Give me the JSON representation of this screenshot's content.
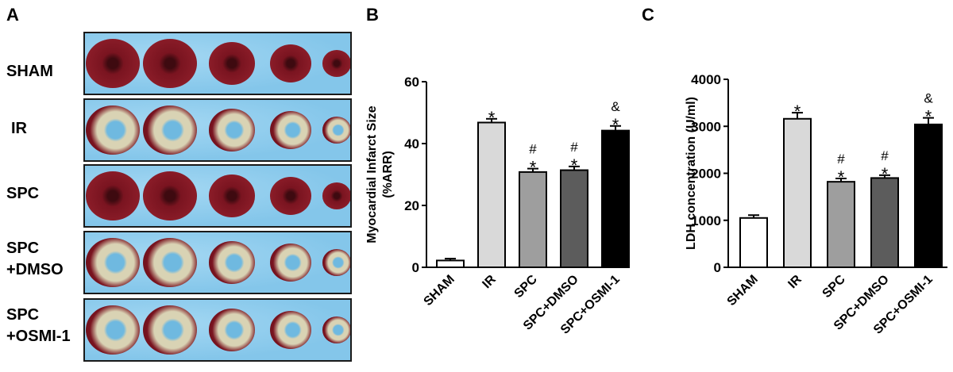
{
  "panel_letters": {
    "a": "A",
    "b": "B",
    "c": "C"
  },
  "panel_a": {
    "rows": [
      {
        "label": "SHAM",
        "infarct": false
      },
      {
        "label": "IR",
        "infarct": true
      },
      {
        "label": "SPC",
        "infarct": false
      },
      {
        "label": "SPC\n+DMSO",
        "infarct": true
      },
      {
        "label": "SPC\n+OSMI-1",
        "infarct": true
      }
    ],
    "colors": {
      "background": "#84c6ea",
      "viable_tissue": "#7a1420",
      "infarct_tissue": "#d9d3b4"
    }
  },
  "chart_data": [
    {
      "type": "bar",
      "panel": "B",
      "ylabel": "Myocardial Infarct Size\n(%ARR)",
      "xlabel": "",
      "ylim": [
        0,
        60
      ],
      "yticks": [
        0,
        20,
        40,
        60
      ],
      "categories": [
        "SHAM",
        "IR",
        "SPC",
        "SPC+DMSO",
        "SPC+OSMI-1"
      ],
      "values": [
        2.2,
        46.8,
        30.8,
        31.4,
        44.2
      ],
      "errors": [
        0.6,
        1.2,
        1.1,
        1.2,
        1.5
      ],
      "annotations": [
        "",
        "*",
        "#\n*",
        "#\n*",
        "&\n*"
      ],
      "colors": [
        "#ffffff",
        "#d9d9d9",
        "#9e9e9e",
        "#5c5c5c",
        "#000000"
      ]
    },
    {
      "type": "bar",
      "panel": "C",
      "ylabel": "LDH concentration (U/ml)",
      "xlabel": "",
      "ylim": [
        0,
        4000
      ],
      "yticks": [
        0,
        1000,
        2000,
        3000,
        4000
      ],
      "categories": [
        "SHAM",
        "IR",
        "SPC",
        "SPC+DMSO",
        "SPC+OSMI-1"
      ],
      "values": [
        1050,
        3160,
        1820,
        1900,
        3040
      ],
      "errors": [
        60,
        130,
        70,
        60,
        140
      ],
      "annotations": [
        "",
        "*",
        "#\n*",
        "#\n*",
        "&\n*"
      ],
      "colors": [
        "#ffffff",
        "#d9d9d9",
        "#9e9e9e",
        "#5c5c5c",
        "#000000"
      ]
    }
  ]
}
